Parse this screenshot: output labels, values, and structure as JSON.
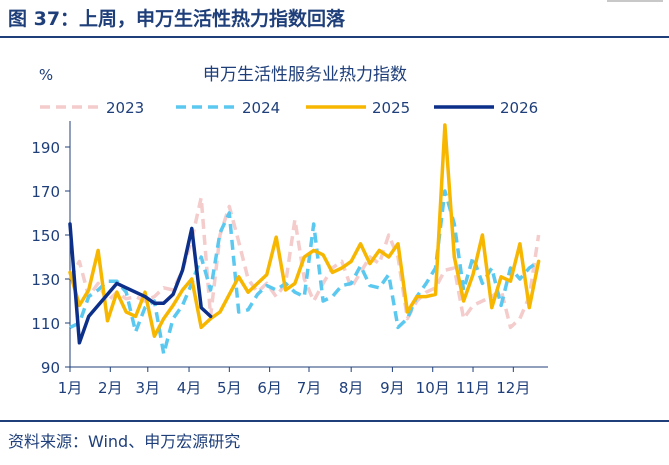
{
  "figure": {
    "title": "图 37：上周，申万生活性热力指数回落",
    "source": "资料来源：Wind、申万宏源研究"
  },
  "chart_data": {
    "type": "line",
    "title": "申万生活性服务业热力指数",
    "ylabel": "%",
    "xlabel": "",
    "ylim": [
      90,
      200
    ],
    "yticks": [
      90,
      110,
      130,
      150,
      170,
      190
    ],
    "xlim": [
      0,
      51
    ],
    "xtick_labels": [
      "1月",
      "2月",
      "3月",
      "4月",
      "5月",
      "6月",
      "7月",
      "8月",
      "9月",
      "10月",
      "11月",
      "12月"
    ],
    "xtick_positions": [
      0,
      4.3,
      8.3,
      12.7,
      17,
      21.3,
      25.5,
      30,
      34.4,
      38.7,
      43,
      47.3
    ],
    "grid": false,
    "legend_position": "top",
    "series": [
      {
        "name": "2023",
        "color": "#f4cccc",
        "dash": "dashed",
        "x": [
          0,
          1,
          2,
          3,
          4,
          5,
          6,
          7,
          8,
          9,
          10,
          11,
          12,
          13,
          14,
          15,
          16,
          17,
          18,
          19,
          20,
          21,
          22,
          23,
          24,
          25,
          26,
          27,
          28,
          29,
          30,
          31,
          32,
          33,
          34,
          35,
          36,
          37,
          38,
          39,
          40,
          41,
          42,
          43,
          44,
          45,
          46,
          47,
          48,
          49,
          50
        ],
        "values": [
          130,
          138,
          122,
          128,
          120,
          124,
          121,
          122,
          120,
          122,
          126,
          125,
          134,
          148,
          167,
          113,
          150,
          163,
          147,
          130,
          124,
          128,
          122,
          128,
          157,
          130,
          120,
          128,
          135,
          138,
          126,
          133,
          140,
          137,
          150,
          140,
          112,
          120,
          124,
          126,
          134,
          135,
          112,
          118,
          120,
          122,
          125,
          108,
          112,
          122,
          150
        ]
      },
      {
        "name": "2024",
        "color": "#5bc8f0",
        "dash": "dashed",
        "x": [
          0,
          1,
          2,
          3,
          4,
          5,
          6,
          7,
          8,
          9,
          10,
          11,
          12,
          13,
          14,
          15,
          16,
          17,
          18,
          19,
          20,
          21,
          22,
          23,
          24,
          25,
          26,
          27,
          28,
          29,
          30,
          31,
          32,
          33,
          34,
          35,
          36,
          37,
          38,
          39,
          40,
          41,
          42,
          43,
          44,
          45,
          46,
          47,
          48,
          49,
          50
        ],
        "values": [
          108,
          110,
          122,
          125,
          129,
          129,
          124,
          106,
          117,
          120,
          96,
          112,
          118,
          128,
          140,
          125,
          151,
          160,
          115,
          116,
          123,
          127,
          125,
          128,
          124,
          122,
          155,
          120,
          122,
          127,
          128,
          136,
          127,
          126,
          132,
          108,
          112,
          122,
          128,
          135,
          170,
          155,
          125,
          140,
          128,
          135,
          118,
          135,
          130,
          135,
          138
        ]
      },
      {
        "name": "2025",
        "color": "#f7b600",
        "dash": "solid",
        "x": [
          0,
          1,
          2,
          3,
          4,
          5,
          6,
          7,
          8,
          9,
          10,
          11,
          12,
          13,
          14,
          15,
          16,
          17,
          18,
          19,
          20,
          21,
          22,
          23,
          24,
          25,
          26,
          27,
          28,
          29,
          30,
          31,
          32,
          33,
          34,
          35,
          36,
          37,
          38,
          39,
          40,
          41,
          42,
          43,
          44,
          45,
          46,
          47,
          48,
          49,
          50
        ],
        "values": [
          133,
          118,
          125,
          143,
          111,
          124,
          115,
          113,
          124,
          104,
          112,
          118,
          125,
          130,
          108,
          112,
          115,
          123,
          131,
          124,
          128,
          132,
          149,
          125,
          128,
          140,
          143,
          141,
          133,
          135,
          138,
          146,
          137,
          143,
          140,
          146,
          115,
          122,
          122,
          123,
          200,
          140,
          120,
          132,
          150,
          117,
          131,
          129,
          146,
          117,
          138
        ]
      },
      {
        "name": "2026",
        "color": "#0c2f8a",
        "dash": "solid",
        "x": [
          0,
          1,
          2,
          3,
          4,
          5,
          6,
          7,
          8,
          9,
          10,
          11,
          12,
          13,
          14,
          15
        ],
        "values": [
          155,
          101,
          113,
          118,
          123,
          128,
          126,
          124,
          122,
          119,
          119,
          123,
          134,
          153,
          117,
          113
        ]
      }
    ]
  }
}
